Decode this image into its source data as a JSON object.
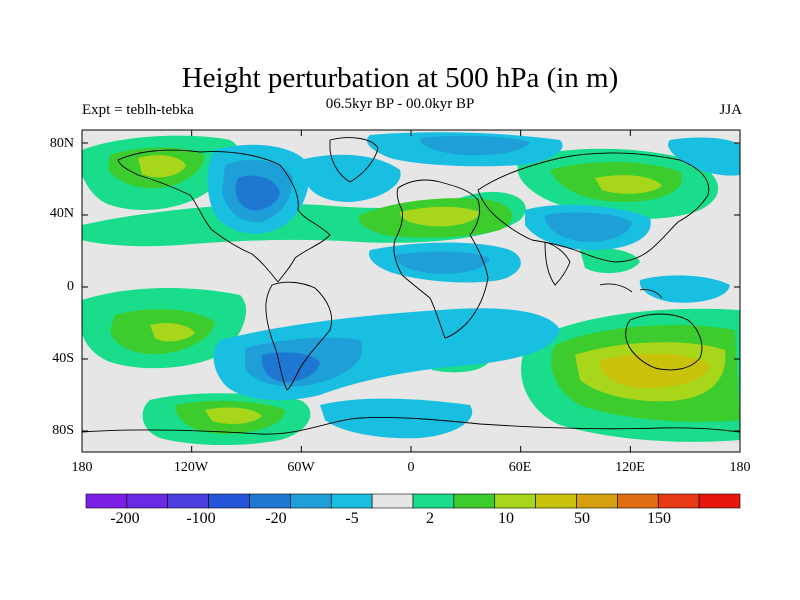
{
  "header": {
    "title": "Height perturbation at 500 hPa (in m)",
    "subtitle": "06.5kyr BP - 00.0kyr BP",
    "left_label": "Expt = teblh-tebka",
    "right_label": "JJA"
  },
  "axes": {
    "lat_ticks": [
      "80N",
      "40N",
      "0",
      "40S",
      "80S"
    ],
    "lon_ticks": [
      "180",
      "120W",
      "60W",
      "0",
      "60E",
      "120E",
      "180"
    ]
  },
  "colorbar": {
    "colors": [
      "#7d1ee6",
      "#6a2ae3",
      "#4b3fdf",
      "#2356d8",
      "#1e78d2",
      "#1e9fd8",
      "#19bfe0",
      "#e6e6e6",
      "#19dd8a",
      "#3ccc2e",
      "#a7d61b",
      "#c9c20b",
      "#d6a010",
      "#e06d12",
      "#e63a14",
      "#e8170e"
    ],
    "labels": [
      "-200",
      "-100",
      "-20",
      "-5",
      "2",
      "10",
      "50",
      "150"
    ]
  },
  "map_palette": {
    "ocean_neutral": "#e6e6e6",
    "coast": "#000000"
  }
}
